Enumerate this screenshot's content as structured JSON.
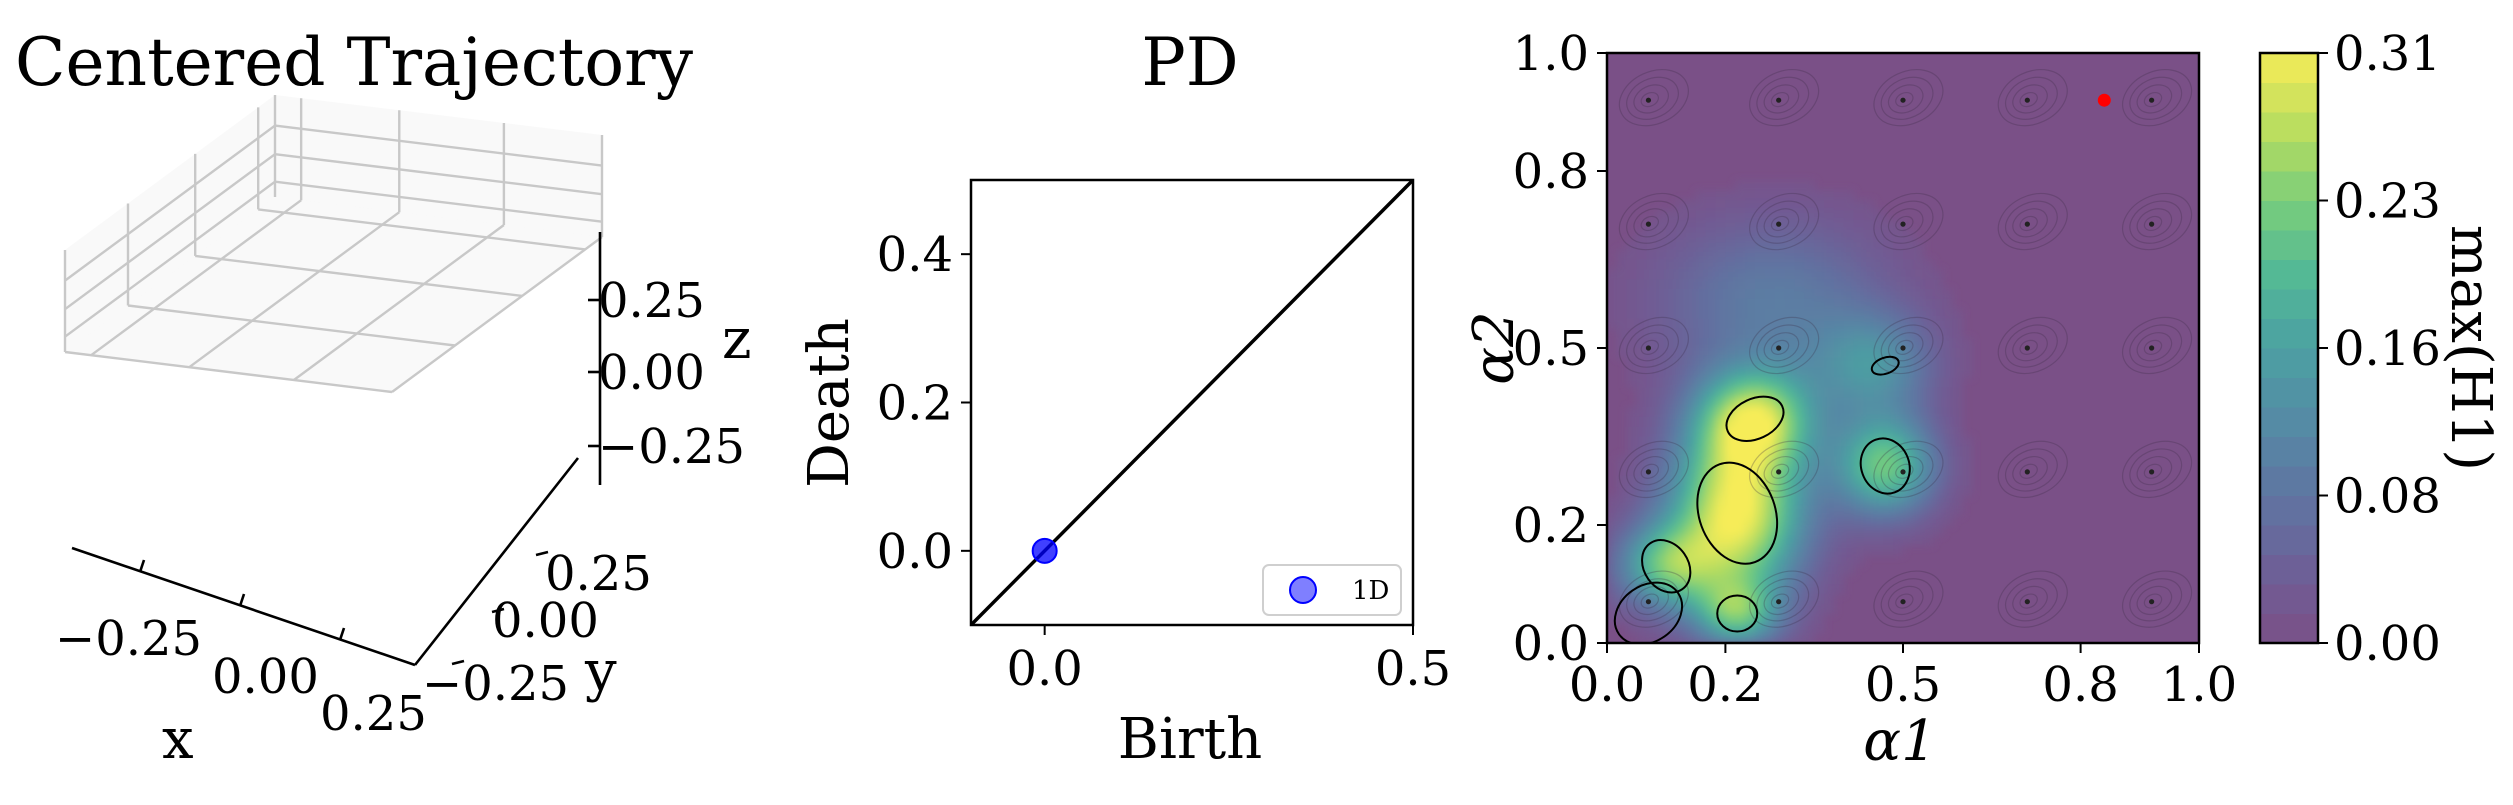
{
  "chart_data": [
    {
      "type": "scatter3d",
      "title": "Centered Trajectory",
      "xlabel": "x",
      "ylabel": "y",
      "zlabel": "z",
      "x_ticks": [
        "−0.25",
        "0.00",
        "0.25"
      ],
      "y_ticks": [
        "0.25",
        "0.00",
        "−0.25"
      ],
      "z_ticks": [
        "0.25",
        "0.00",
        "−0.25"
      ],
      "grid": true,
      "points": []
    },
    {
      "type": "scatter",
      "title": "PD",
      "xlabel": "Birth",
      "ylabel": "Death",
      "xlim": [
        -0.1,
        0.5
      ],
      "ylim": [
        -0.1,
        0.5
      ],
      "x_ticks": [
        0.0,
        0.5
      ],
      "y_ticks": [
        0.0,
        0.2,
        0.4
      ],
      "x_tick_labels": [
        "0.0",
        "0.5"
      ],
      "y_tick_labels": [
        "0.0",
        "0.2",
        "0.4"
      ],
      "diagonal": true,
      "legend": "bottom-right",
      "series": [
        {
          "name": "1D",
          "color": "#0000ff",
          "points": [
            [
              0.0,
              0.0
            ]
          ]
        }
      ]
    },
    {
      "type": "heatmap",
      "title": "",
      "xlabel": "α1",
      "ylabel": "α2",
      "xlim": [
        0.0,
        1.0
      ],
      "ylim": [
        0.0,
        1.0
      ],
      "x_ticks": [
        0.0,
        0.2,
        0.5,
        0.8,
        1.0
      ],
      "y_ticks": [
        0.0,
        0.2,
        0.5,
        0.8,
        1.0
      ],
      "x_tick_labels": [
        "0.0",
        "0.2",
        "0.5",
        "0.8",
        "1.0"
      ],
      "y_tick_labels": [
        "0.0",
        "0.2",
        "0.5",
        "0.8",
        "1.0"
      ],
      "colorbar_label": "max(H1)",
      "colorbar_ticks": [
        "0.00",
        "0.08",
        "0.16",
        "0.23",
        "0.31"
      ],
      "vmin": 0.0,
      "vmax": 0.31,
      "colormap": "viridis",
      "red_point": [
        0.84,
        0.92
      ],
      "peaks": [
        {
          "x": 0.22,
          "y": 0.22,
          "value": 0.31,
          "sx": 0.08,
          "sy": 0.1
        },
        {
          "x": 0.25,
          "y": 0.38,
          "value": 0.24,
          "sx": 0.07,
          "sy": 0.06
        },
        {
          "x": 0.47,
          "y": 0.3,
          "value": 0.22,
          "sx": 0.06,
          "sy": 0.06
        },
        {
          "x": 0.1,
          "y": 0.13,
          "value": 0.18,
          "sx": 0.06,
          "sy": 0.05
        },
        {
          "x": 0.45,
          "y": 0.47,
          "value": 0.12,
          "sx": 0.07,
          "sy": 0.06
        },
        {
          "x": 0.28,
          "y": 0.58,
          "value": 0.09,
          "sx": 0.14,
          "sy": 0.1
        },
        {
          "x": 0.22,
          "y": 0.05,
          "value": 0.17,
          "sx": 0.05,
          "sy": 0.04
        }
      ]
    }
  ]
}
